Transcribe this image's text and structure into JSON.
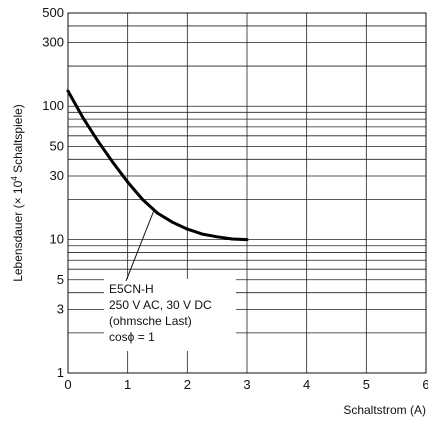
{
  "chart_data": {
    "type": "line",
    "title": "",
    "xlabel": "Schaltstrom (A)",
    "ylabel_main": "Lebensdauer (× 10",
    "ylabel_sup": "4",
    "ylabel_tail": " Schaltspiele)",
    "x_scale": "linear",
    "y_scale": "log",
    "xlim": [
      0,
      6
    ],
    "ylim": [
      1,
      500
    ],
    "x_ticks": [
      0,
      1,
      2,
      3,
      4,
      5,
      6
    ],
    "y_tick_labels": [
      "1",
      "3",
      "5",
      "10",
      "30",
      "50",
      "100",
      "300",
      "500"
    ],
    "y_grid_values": [
      1,
      2,
      3,
      4,
      5,
      6,
      7,
      8,
      9,
      10,
      20,
      30,
      40,
      50,
      60,
      70,
      80,
      90,
      100,
      200,
      300,
      400,
      500
    ],
    "grid": true,
    "series": [
      {
        "color": "#000000",
        "x": [
          0.0,
          0.25,
          0.5,
          0.75,
          1.0,
          1.25,
          1.5,
          1.75,
          2.0,
          2.25,
          2.5,
          2.75,
          3.0
        ],
        "y": [
          130,
          82,
          55,
          38,
          27,
          20,
          15.8,
          13.5,
          12,
          11,
          10.5,
          10.1,
          10
        ]
      }
    ],
    "annotation": {
      "lines": [
        "E5CN-H",
        "250 V AC, 30 V DC",
        "(ohmsche Last)",
        "cosϕ = 1"
      ],
      "points_to": {
        "x": 1.45,
        "y": 17
      }
    }
  }
}
